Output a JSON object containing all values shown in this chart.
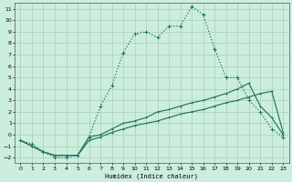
{
  "xlabel": "Humidex (Indice chaleur)",
  "bg_color": "#cceedd",
  "line_color": "#1a6e60",
  "grid_color": "#aaccbb",
  "xlim": [
    -0.5,
    23.5
  ],
  "ylim": [
    -2.5,
    11.5
  ],
  "x_ticks": [
    0,
    1,
    2,
    3,
    4,
    5,
    6,
    7,
    8,
    9,
    10,
    11,
    12,
    13,
    14,
    15,
    16,
    17,
    18,
    19,
    20,
    21,
    22,
    23
  ],
  "y_ticks": [
    -2,
    -1,
    0,
    1,
    2,
    3,
    4,
    5,
    6,
    7,
    8,
    9,
    10,
    11
  ],
  "series": [
    {
      "linestyle": "dotted",
      "x": [
        0,
        1,
        2,
        3,
        4,
        5,
        6,
        7,
        8,
        9,
        10,
        11,
        12,
        13,
        14,
        15,
        16,
        17,
        18,
        19,
        20,
        21,
        22,
        23
      ],
      "y": [
        -0.5,
        -0.8,
        -1.5,
        -2.0,
        -2.0,
        -1.8,
        -0.2,
        2.5,
        4.3,
        7.2,
        8.8,
        9.0,
        8.5,
        9.5,
        9.5,
        11.2,
        10.5,
        7.5,
        5.0,
        5.0,
        3.0,
        2.0,
        0.5,
        -0.2
      ]
    },
    {
      "linestyle": "solid",
      "x": [
        0,
        1,
        2,
        3,
        4,
        5,
        6,
        7,
        8,
        9,
        10,
        11,
        12,
        13,
        14,
        15,
        16,
        17,
        18,
        19,
        20,
        21,
        22,
        23
      ],
      "y": [
        -0.5,
        -1.0,
        -1.5,
        -1.8,
        -1.8,
        -1.8,
        -0.2,
        0.0,
        0.5,
        1.0,
        1.2,
        1.5,
        2.0,
        2.2,
        2.5,
        2.8,
        3.0,
        3.3,
        3.6,
        4.0,
        4.5,
        2.5,
        1.5,
        0.0
      ]
    },
    {
      "linestyle": "solid",
      "x": [
        0,
        1,
        2,
        3,
        4,
        5,
        6,
        7,
        8,
        9,
        10,
        11,
        12,
        13,
        14,
        15,
        16,
        17,
        18,
        19,
        20,
        21,
        22,
        23
      ],
      "y": [
        -0.5,
        -1.0,
        -1.5,
        -1.8,
        -1.8,
        -1.8,
        -0.5,
        -0.2,
        0.2,
        0.5,
        0.8,
        1.0,
        1.2,
        1.5,
        1.8,
        2.0,
        2.2,
        2.5,
        2.8,
        3.0,
        3.3,
        3.6,
        3.8,
        0.2
      ]
    }
  ]
}
